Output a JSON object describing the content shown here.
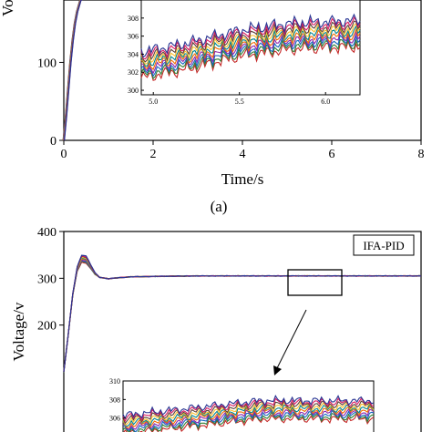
{
  "chart_data": [
    {
      "type": "line",
      "panel_label": "(a)",
      "xlabel": "Time/s",
      "ylabel": "Voltage/v",
      "x_ticks": [
        0,
        2,
        4,
        6,
        8
      ],
      "y_ticks": [
        0,
        100
      ],
      "xlim": [
        0,
        8
      ],
      "ylim": [
        0,
        180
      ],
      "series_colors": [
        "#c62828",
        "#2e7d32",
        "#1565c0",
        "#8e24aa",
        "#ef6c00",
        "#00838f",
        "#fbc02d",
        "#5d4037",
        "#d81b60",
        "#283593"
      ],
      "main_curve": {
        "x": [
          0,
          0.05,
          0.1,
          0.15,
          0.2,
          0.25,
          0.3,
          0.35,
          0.4
        ],
        "y": [
          0,
          30,
          65,
          100,
          128,
          150,
          165,
          175,
          185
        ]
      },
      "inset": {
        "x_ticks": [
          "5.0",
          "5.5",
          "6.0"
        ],
        "y_ticks": [
          "300",
          "302",
          "304",
          "306",
          "308"
        ],
        "xlim": [
          4.93,
          6.2
        ],
        "ylim": [
          299.5,
          310
        ],
        "trend_x": [
          4.93,
          5.2,
          5.5,
          5.8,
          6.2
        ],
        "trend_y": [
          302.8,
          303.8,
          305.2,
          306.0,
          306.3
        ]
      }
    },
    {
      "type": "line",
      "legend": "IFA-PID",
      "ylabel": "Voltage/v",
      "y_ticks": [
        200,
        300,
        400
      ],
      "xlim": [
        0,
        8
      ],
      "ylim": [
        100,
        400
      ],
      "series_colors": [
        "#c62828",
        "#2e7d32",
        "#1565c0",
        "#8e24aa",
        "#ef6c00",
        "#00838f",
        "#fbc02d",
        "#5d4037",
        "#d81b60",
        "#283593"
      ],
      "step_response": {
        "x": [
          0,
          0.1,
          0.2,
          0.3,
          0.4,
          0.5,
          0.6,
          0.7,
          0.8,
          1.0,
          1.2,
          1.5,
          2.0,
          3.0,
          4.0,
          5.0,
          6.0,
          7.0,
          8.0
        ],
        "y": [
          100,
          180,
          265,
          320,
          342,
          340,
          325,
          310,
          302,
          299,
          301,
          303,
          304,
          305,
          305,
          305,
          305,
          305,
          305
        ]
      },
      "peak_spread": [
        -8,
        8
      ],
      "inset": {
        "y_ticks": [
          "306",
          "308",
          "310"
        ],
        "ylim": [
          304.5,
          310
        ]
      }
    }
  ]
}
